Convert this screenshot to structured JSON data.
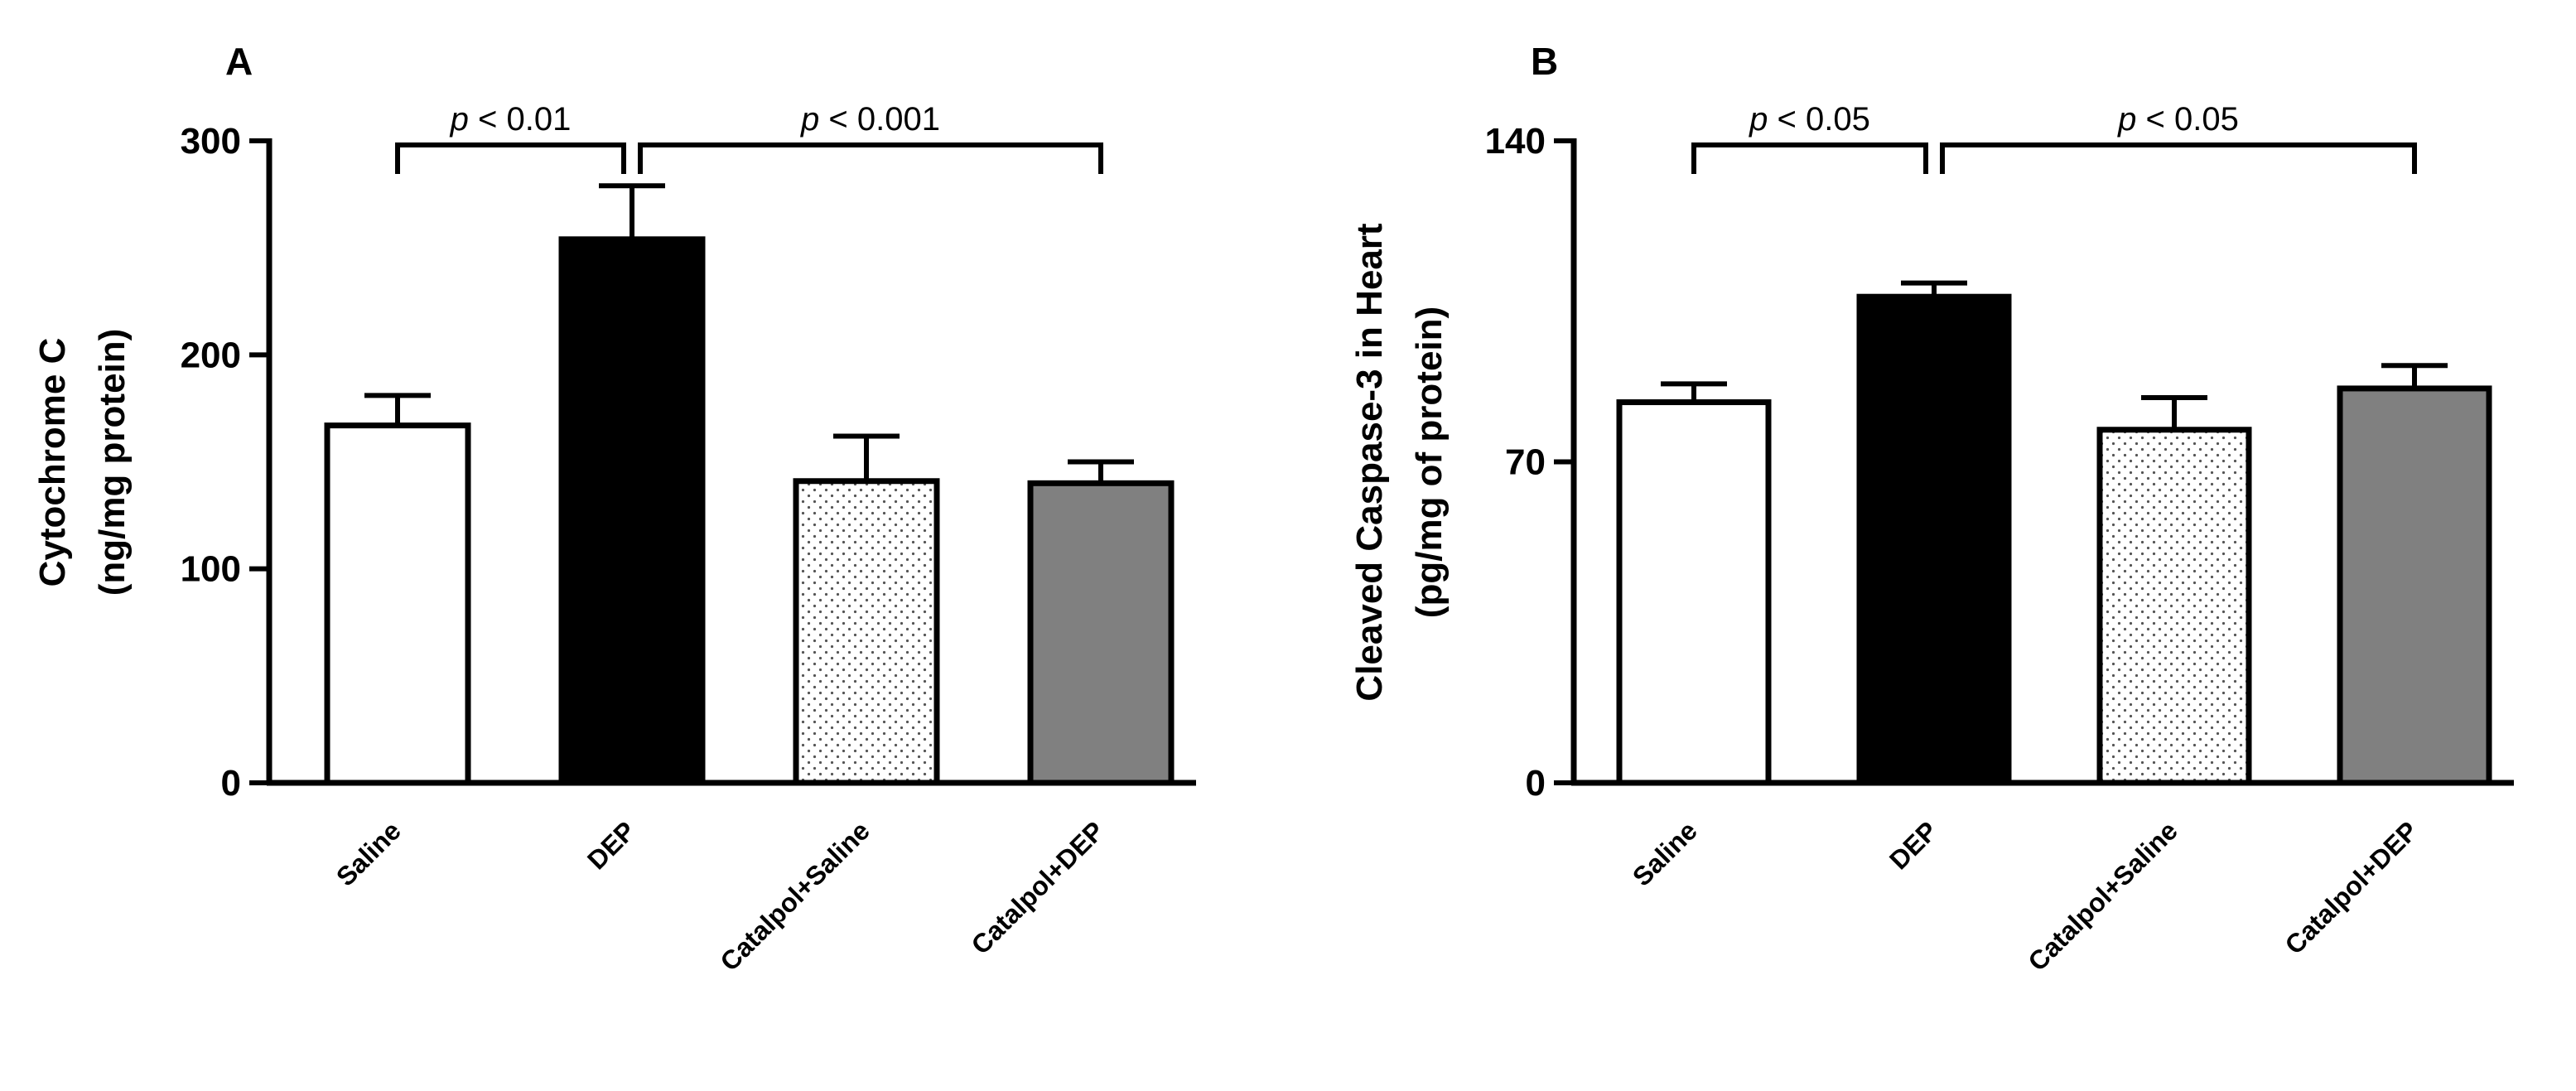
{
  "chart_data": [
    {
      "type": "bar",
      "panel_label": "A",
      "title": "",
      "ylabel_lines": [
        "Cytochrome C",
        "(ng/mg protein)"
      ],
      "xlabel": "",
      "ylim": [
        0,
        300
      ],
      "yticks": [
        0,
        100,
        200,
        300
      ],
      "categories": [
        "Saline",
        "DEP",
        "Catalpol+Saline",
        "Catalpol+DEP"
      ],
      "values": [
        167,
        254,
        141,
        140
      ],
      "errors": [
        14,
        25,
        21,
        10
      ],
      "fills": [
        "#ffffff",
        "#000000",
        "dots",
        "#808080"
      ],
      "comparisons": [
        {
          "from": 0,
          "to": 1,
          "p_symbol": "p",
          "label": " < 0.01"
        },
        {
          "from": 1,
          "to": 3,
          "p_symbol": "p",
          "label": " < 0.001"
        }
      ],
      "grid": false,
      "legend": "none"
    },
    {
      "type": "bar",
      "panel_label": "B",
      "title": "",
      "ylabel_lines": [
        "Cleaved Caspase-3 in Heart",
        "(pg/mg of protein)"
      ],
      "xlabel": "",
      "ylim": [
        0,
        140
      ],
      "yticks": [
        0,
        70,
        140
      ],
      "categories": [
        "Saline",
        "DEP",
        "Catalpol+Saline",
        "Catalpol+DEP"
      ],
      "values": [
        83,
        106,
        77,
        86
      ],
      "errors": [
        4,
        3,
        7,
        5
      ],
      "fills": [
        "#ffffff",
        "#000000",
        "dots",
        "#808080"
      ],
      "comparisons": [
        {
          "from": 0,
          "to": 1,
          "p_symbol": "p",
          "label": " < 0.05"
        },
        {
          "from": 1,
          "to": 3,
          "p_symbol": "p",
          "label": " < 0.05"
        }
      ],
      "grid": false,
      "legend": "none"
    }
  ]
}
